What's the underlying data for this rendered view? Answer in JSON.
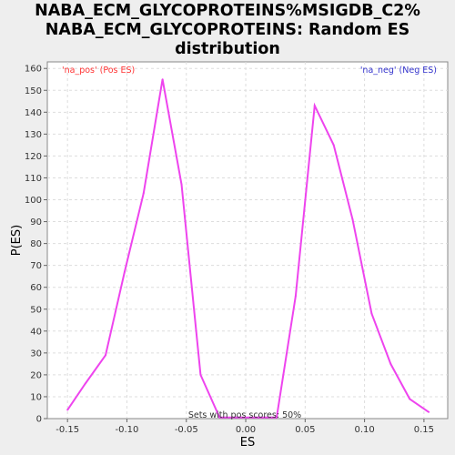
{
  "chart_data": {
    "type": "line",
    "title_lines": [
      "NABA_ECM_GLYCOPROTEINS%MSIGDB_C2%",
      "NABA_ECM_GLYCOPROTEINS: Random ES",
      "distribution"
    ],
    "xlabel": "ES",
    "ylabel": "P(ES)",
    "xlim": [
      -0.167,
      0.17
    ],
    "ylim": [
      0,
      163
    ],
    "x_ticks": [
      -0.15,
      -0.1,
      -0.05,
      0.0,
      0.05,
      0.1,
      0.15
    ],
    "x_tick_labels": [
      "-0.15",
      "-0.10",
      "-0.05",
      "0.00",
      "0.05",
      "0.10",
      "0.15"
    ],
    "y_ticks": [
      0,
      10,
      20,
      30,
      40,
      50,
      60,
      70,
      80,
      90,
      100,
      110,
      120,
      130,
      140,
      150,
      160
    ],
    "grid": true,
    "legend_left": "'na_pos' (Pos ES)",
    "legend_right": "'na_neg' (Neg ES)",
    "legend_left_color": "#ff3333",
    "legend_right_color": "#3333cc",
    "line_color": "#ee44ee",
    "annotation": "Sets with pos scores: 50%",
    "series": [
      {
        "x": [
          -0.15,
          -0.135,
          -0.118,
          -0.102,
          -0.086,
          -0.07,
          -0.054,
          -0.038,
          -0.022,
          -0.006,
          0.01,
          0.026,
          0.042,
          0.058,
          0.074,
          0.09,
          0.106,
          0.122,
          0.138,
          0.154
        ],
        "y": [
          4,
          16,
          29,
          67,
          103,
          155,
          107,
          20,
          0.5,
          0.5,
          0.5,
          0.5,
          56,
          143,
          125,
          91,
          48,
          25,
          9,
          3
        ]
      }
    ]
  }
}
